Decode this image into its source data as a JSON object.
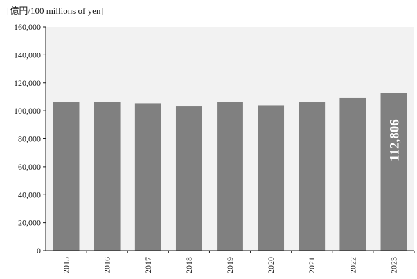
{
  "chart_data": {
    "type": "bar",
    "title": "",
    "ylabel": "[億円/100 millions of yen]",
    "xlabel": "",
    "categories": [
      "2015",
      "2016",
      "2017",
      "2018",
      "2019",
      "2020",
      "2021",
      "2022",
      "2023"
    ],
    "series": [
      {
        "values": [
          106000,
          106300,
          105300,
          103500,
          106300,
          103800,
          106000,
          109500,
          112806
        ],
        "color": "#808080"
      }
    ],
    "ylim": [
      0,
      160000
    ],
    "yticks": [
      0,
      20000,
      40000,
      60000,
      80000,
      100000,
      120000,
      140000,
      160000
    ],
    "ytick_labels": [
      "0",
      "20,000",
      "40,000",
      "60,000",
      "80,000",
      "100,000",
      "120,000",
      "140,000",
      "160,000"
    ],
    "grid": false,
    "plot_background": "#f2f2f2",
    "data_labels": [
      {
        "category": "2023",
        "text": "112,806"
      }
    ]
  }
}
